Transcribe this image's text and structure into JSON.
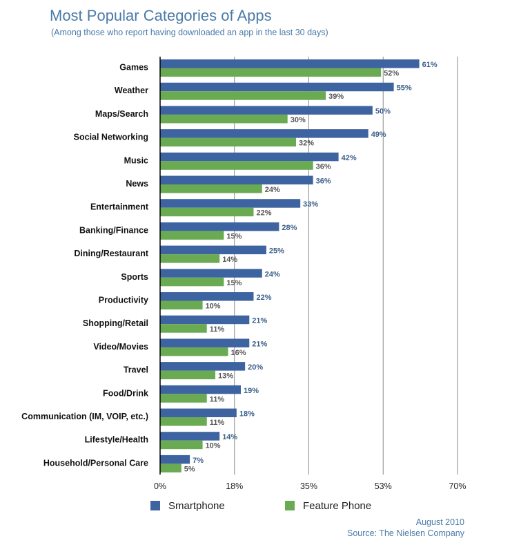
{
  "title": "Most Popular Categories of Apps",
  "subtitle": "(Among those who report having downloaded an app in the last 30 days)",
  "legend": [
    {
      "label": "Smartphone",
      "color": "#3d64a1"
    },
    {
      "label": "Feature Phone",
      "color": "#6aaa52"
    }
  ],
  "footer": {
    "date": "August 2010",
    "source": "Source: The Nielsen Company"
  },
  "chart_data": {
    "type": "bar",
    "orientation": "horizontal",
    "categories": [
      "Games",
      "Weather",
      "Maps/Search",
      "Social Networking",
      "Music",
      "News",
      "Entertainment",
      "Banking/Finance",
      "Dining/Restaurant",
      "Sports",
      "Productivity",
      "Shopping/Retail",
      "Video/Movies",
      "Travel",
      "Food/Drink",
      "Communication (IM, VOIP, etc.)",
      "Lifestyle/Health",
      "Household/Personal Care"
    ],
    "series": [
      {
        "name": "Smartphone",
        "color": "#3d64a1",
        "values": [
          61,
          55,
          50,
          49,
          42,
          36,
          33,
          28,
          25,
          24,
          22,
          21,
          21,
          20,
          19,
          18,
          14,
          7
        ]
      },
      {
        "name": "Feature Phone",
        "color": "#6aaa52",
        "values": [
          52,
          39,
          30,
          32,
          36,
          24,
          22,
          15,
          14,
          15,
          10,
          11,
          16,
          13,
          11,
          11,
          10,
          5
        ]
      }
    ],
    "value_suffix": "%",
    "xlim": [
      0,
      70
    ],
    "xticks": [
      0,
      17.5,
      35,
      52.5,
      70
    ],
    "xtick_labels": [
      "0%",
      "18%",
      "35%",
      "53%",
      "70%"
    ],
    "grid": true,
    "legend_position": "bottom"
  }
}
